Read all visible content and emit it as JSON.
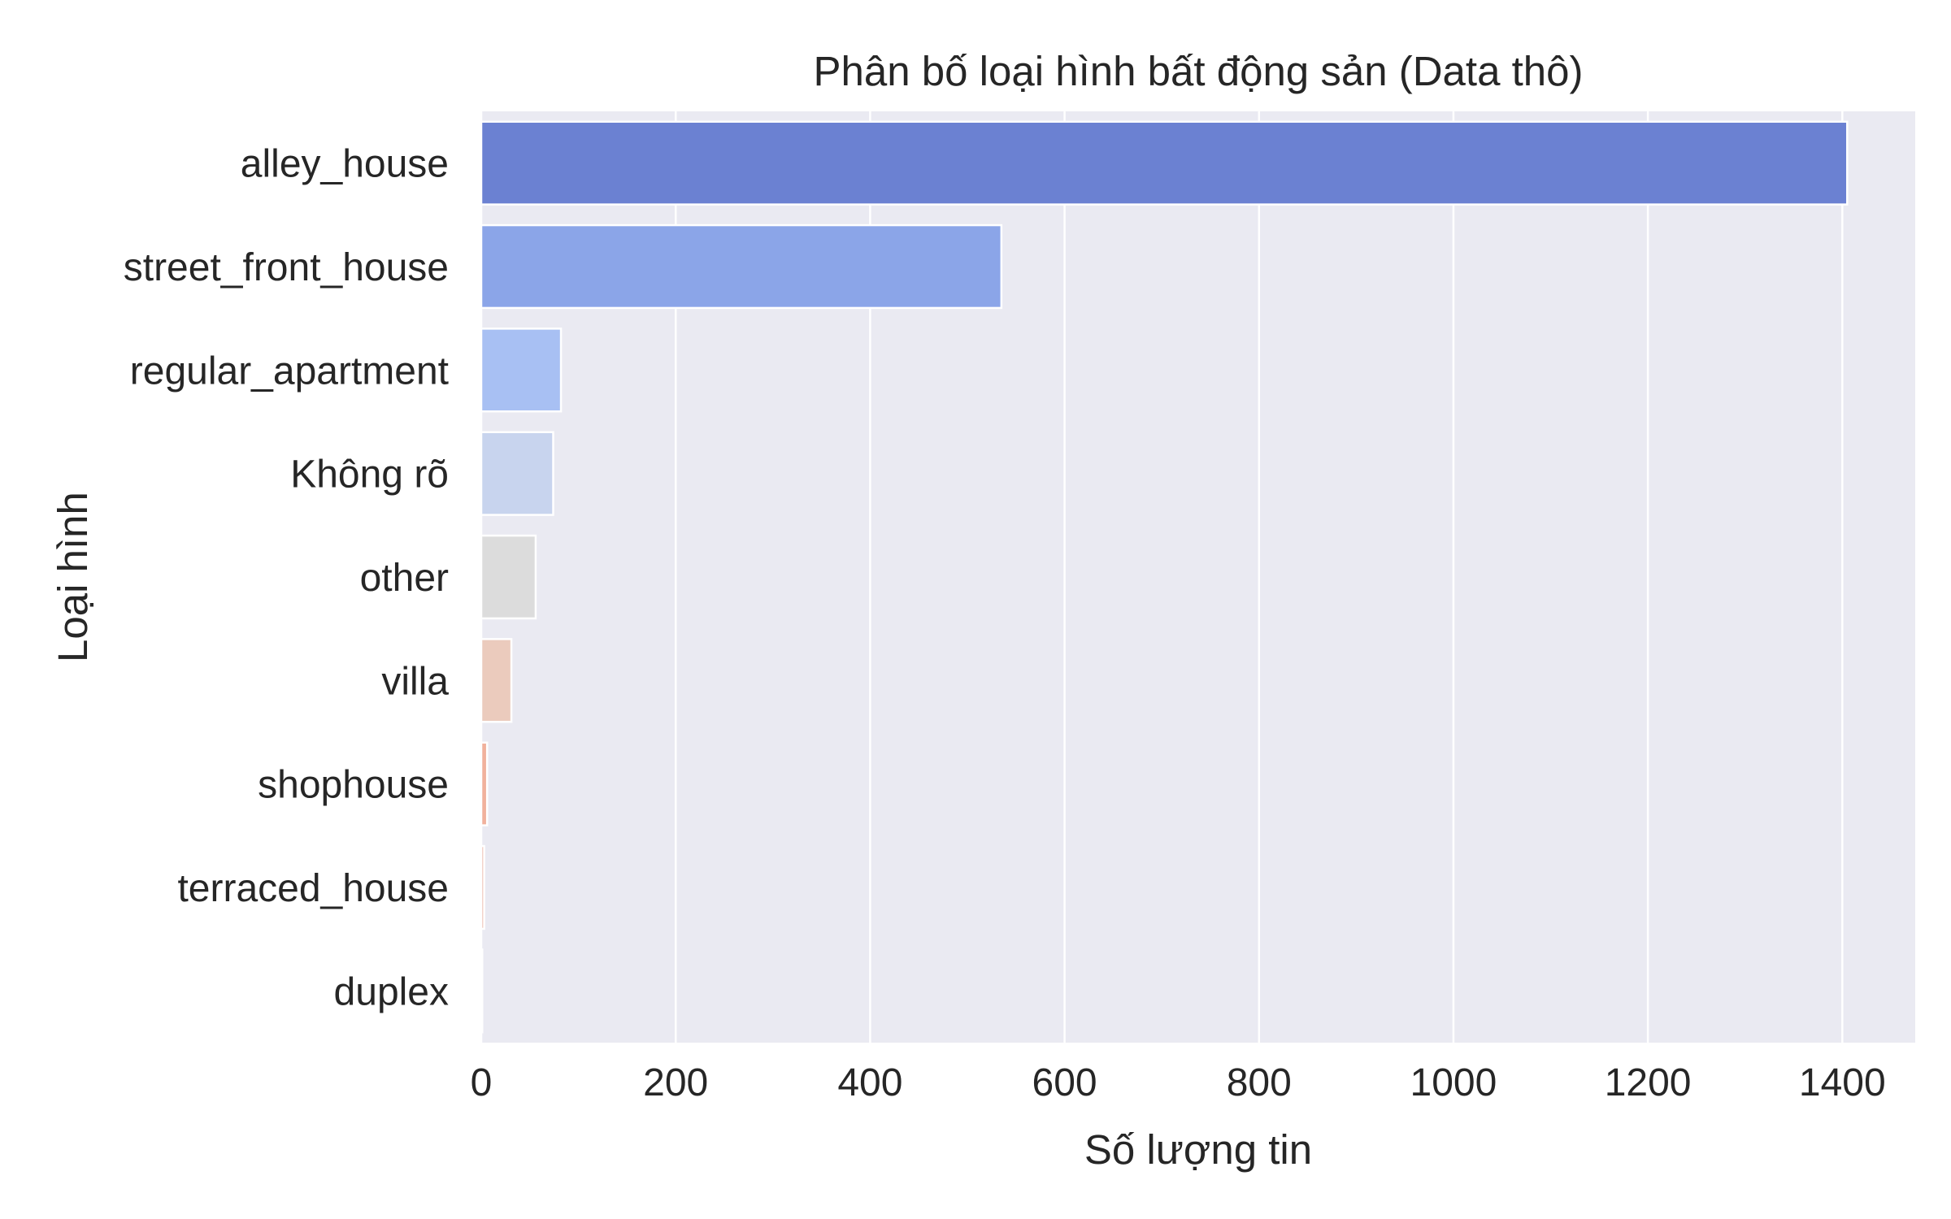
{
  "chart_data": {
    "type": "bar",
    "orientation": "horizontal",
    "title": "Phân bố loại hình bất động sản (Data thô)",
    "xlabel": "Số lượng tin",
    "ylabel": "Loại hình",
    "xlim": [
      0,
      1475
    ],
    "xticks": [
      0,
      200,
      400,
      600,
      800,
      1000,
      1200,
      1400
    ],
    "grid": true,
    "categories": [
      "alley_house",
      "street_front_house",
      "regular_apartment",
      "Không rõ",
      "other",
      "villa",
      "shophouse",
      "terraced_house",
      "duplex"
    ],
    "values": [
      1405,
      535,
      82,
      74,
      56,
      31,
      6,
      3,
      1
    ],
    "colors": [
      "#6b81d2",
      "#8ba5e8",
      "#a8c0f3",
      "#c8d4ee",
      "#dcdcdc",
      "#ebcbbd",
      "#f1b19c",
      "#efc4b8",
      "#f2d5cc"
    ],
    "background": "#eaeaf2"
  }
}
